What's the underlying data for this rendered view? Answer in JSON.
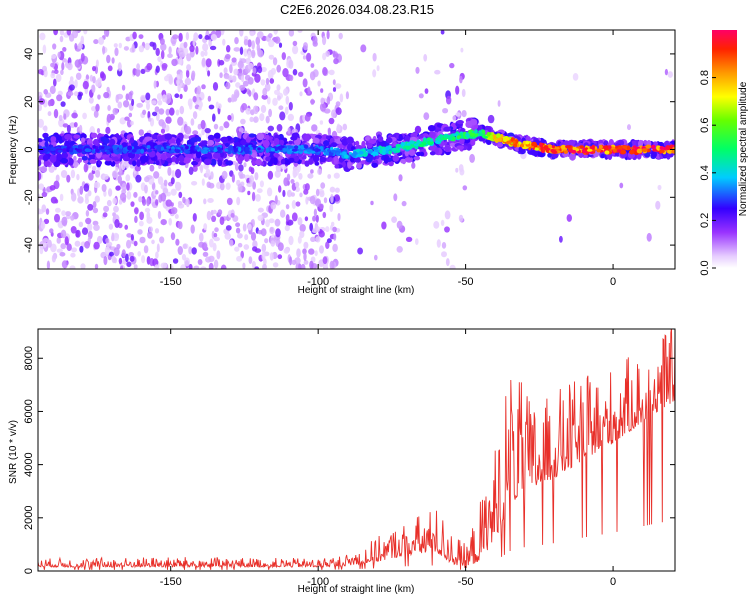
{
  "title": "C2E6.2026.034.08.23.R15",
  "chart_data": [
    {
      "type": "heatmap",
      "name": "spectrogram",
      "xlabel": "Height of straight line (km)",
      "ylabel": "Frequency (Hz)",
      "xlim": [
        -195,
        21
      ],
      "ylim": [
        -50,
        50
      ],
      "x_ticks": [
        -150,
        -100,
        -50,
        0
      ],
      "y_ticks": [
        -40,
        -20,
        0,
        20,
        40
      ],
      "colorbar": {
        "label": "Normalized spectral amplitude",
        "range": [
          0.0,
          1.0
        ],
        "ticks": [
          0.0,
          0.2,
          0.4,
          0.6,
          0.8
        ]
      },
      "ridge": {
        "description_points_x": [
          -195,
          -100,
          -90,
          -75,
          -60,
          -45,
          -40,
          -30,
          -20,
          0,
          21
        ],
        "center_frequency_hz": [
          0,
          0,
          -2,
          0,
          4,
          7,
          5,
          2,
          0,
          0,
          0
        ],
        "amplitude": [
          0.3,
          0.35,
          0.4,
          0.45,
          0.5,
          0.55,
          0.8,
          0.9,
          0.95,
          0.98,
          1.0
        ]
      }
    },
    {
      "type": "line",
      "name": "snr",
      "xlabel": "Height of straight line (km)",
      "ylabel": "SNR (10 * v/v)",
      "xlim": [
        -195,
        21
      ],
      "ylim": [
        0,
        9100
      ],
      "x_ticks": [
        -150,
        -100,
        -50,
        0
      ],
      "y_ticks": [
        0,
        2000,
        4000,
        6000,
        8000
      ],
      "color": "#e8302a",
      "envelope": {
        "x": [
          -195,
          -150,
          -100,
          -90,
          -80,
          -70,
          -60,
          -55,
          -50,
          -45,
          -40,
          -35,
          -30,
          -25,
          -20,
          -15,
          -10,
          -5,
          0,
          5,
          10,
          15,
          21
        ],
        "baseline": [
          150,
          150,
          150,
          200,
          350,
          600,
          700,
          300,
          100,
          400,
          1200,
          2500,
          3000,
          3200,
          3500,
          3800,
          4200,
          4500,
          4800,
          5200,
          5600,
          6000,
          6400
        ],
        "peak": [
          450,
          500,
          450,
          600,
          1200,
          1800,
          2300,
          1500,
          900,
          2500,
          4500,
          7500,
          6500,
          6000,
          6500,
          6800,
          7000,
          7300,
          7500,
          7800,
          8100,
          8500,
          9000
        ]
      }
    }
  ]
}
